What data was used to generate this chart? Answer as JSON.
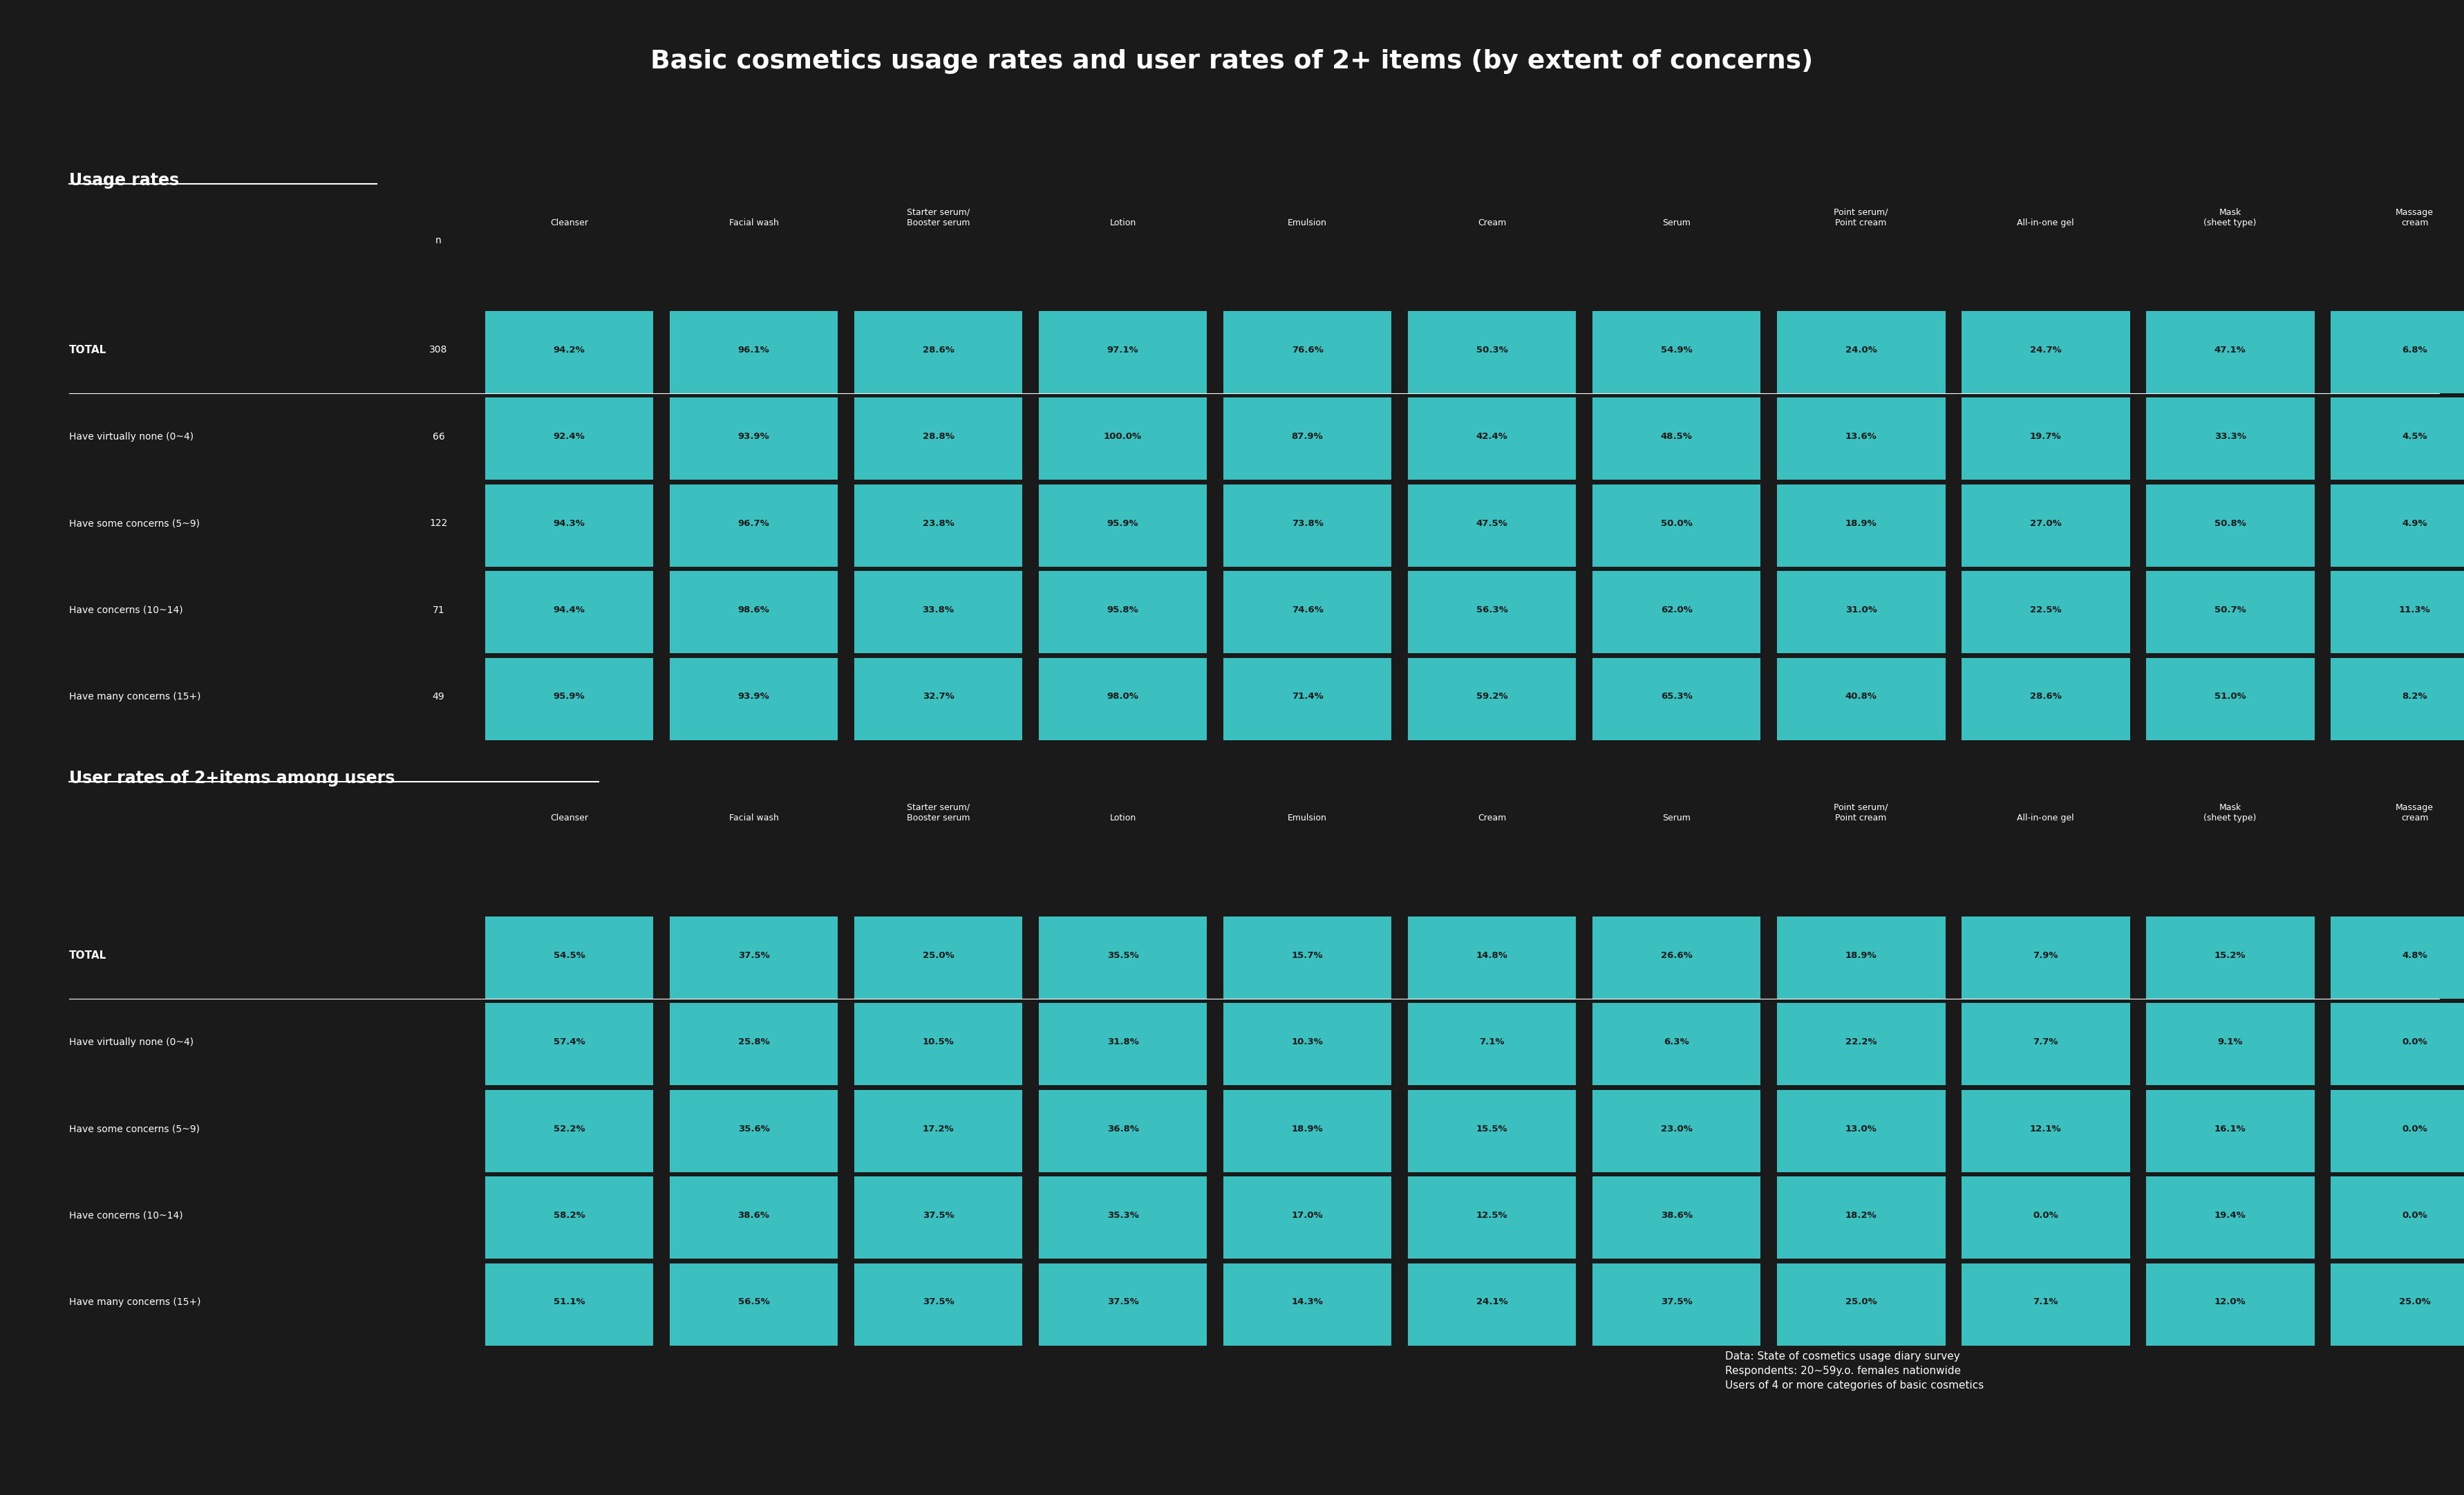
{
  "title": "Basic cosmetics usage rates and user rates of 2+ items (by extent of concerns)",
  "bg_color": "#1a1a1a",
  "text_color": "#ffffff",
  "teal_color": "#3bbfbf",
  "dark_color": "#1a1a1a",
  "usage_section_label": "Usage rates",
  "user_section_label": "User rates of 2+items among users",
  "columns": [
    "Cleanser",
    "Facial wash",
    "Starter serum/\nBooster serum",
    "Lotion",
    "Emulsion",
    "Cream",
    "Serum",
    "Point serum/\nPoint cream",
    "All-in-one gel",
    "Mask\n(sheet type)",
    "Massage\ncream"
  ],
  "usage_rows": [
    {
      "label": "TOTAL",
      "n": 308,
      "values": [
        94.2,
        96.1,
        28.6,
        97.1,
        76.6,
        50.3,
        54.9,
        24.0,
        24.7,
        47.1,
        6.8
      ]
    },
    {
      "label": "Have virtually none (0~4)",
      "n": 66,
      "values": [
        92.4,
        93.9,
        28.8,
        100.0,
        87.9,
        42.4,
        48.5,
        13.6,
        19.7,
        33.3,
        4.5
      ]
    },
    {
      "label": "Have some concerns (5~9)",
      "n": 122,
      "values": [
        94.3,
        96.7,
        23.8,
        95.9,
        73.8,
        47.5,
        50.0,
        18.9,
        27.0,
        50.8,
        4.9
      ]
    },
    {
      "label": "Have concerns (10~14)",
      "n": 71,
      "values": [
        94.4,
        98.6,
        33.8,
        95.8,
        74.6,
        56.3,
        62.0,
        31.0,
        22.5,
        50.7,
        11.3
      ]
    },
    {
      "label": "Have many concerns (15+)",
      "n": 49,
      "values": [
        95.9,
        93.9,
        32.7,
        98.0,
        71.4,
        59.2,
        65.3,
        40.8,
        28.6,
        51.0,
        8.2
      ]
    }
  ],
  "user_rows": [
    {
      "label": "TOTAL",
      "values": [
        54.5,
        37.5,
        25.0,
        35.5,
        15.7,
        14.8,
        26.6,
        18.9,
        7.9,
        15.2,
        4.8
      ]
    },
    {
      "label": "Have virtually none (0~4)",
      "values": [
        57.4,
        25.8,
        10.5,
        31.8,
        10.3,
        7.1,
        6.3,
        22.2,
        7.7,
        9.1,
        0.0
      ]
    },
    {
      "label": "Have some concerns (5~9)",
      "values": [
        52.2,
        35.6,
        17.2,
        36.8,
        18.9,
        15.5,
        23.0,
        13.0,
        12.1,
        16.1,
        0.0
      ]
    },
    {
      "label": "Have concerns (10~14)",
      "values": [
        58.2,
        38.6,
        37.5,
        35.3,
        17.0,
        12.5,
        38.6,
        18.2,
        0.0,
        19.4,
        0.0
      ]
    },
    {
      "label": "Have many concerns (15+)",
      "values": [
        51.1,
        56.5,
        37.5,
        37.5,
        14.3,
        24.1,
        37.5,
        25.0,
        7.1,
        12.0,
        25.0
      ]
    }
  ],
  "footnote": "Data: State of cosmetics usage diary survey\nRespondents: 20~59y.o. females nationwide\nUsers of 4 or more categories of basic cosmetics"
}
